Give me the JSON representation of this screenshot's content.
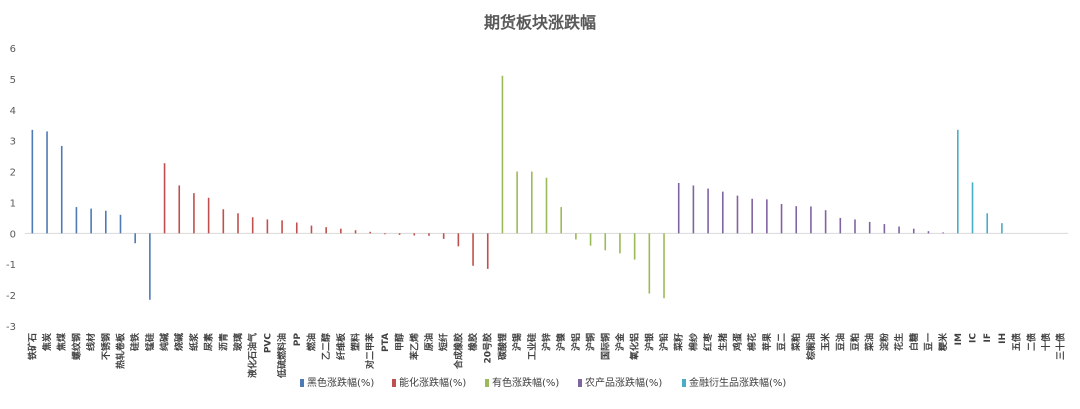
{
  "chart_data": {
    "type": "bar",
    "title": "期货板块涨跌幅",
    "xlabel": "",
    "ylabel": "",
    "ylim": [
      -3,
      6
    ],
    "yticks": [
      -3,
      -2,
      -1,
      0,
      1,
      2,
      3,
      4,
      5,
      6
    ],
    "grid": false,
    "legend_position": "bottom",
    "categories": [
      "铁矿石",
      "焦炭",
      "焦煤",
      "螺纹钢",
      "线材",
      "不锈钢",
      "热轧卷板",
      "硅铁",
      "锰硅",
      "纯碱",
      "烧碱",
      "纸浆",
      "尿素",
      "沥青",
      "玻璃",
      "液化石油气",
      "PVC",
      "低硫燃料油",
      "PP",
      "燃油",
      "乙二醇",
      "纤维板",
      "塑料",
      "对二甲苯",
      "PTA",
      "甲醇",
      "苯乙烯",
      "原油",
      "短纤",
      "合成橡胶",
      "橡胶",
      "20号胶",
      "碳酸锂",
      "沪锡",
      "工业硅",
      "沪锌",
      "沪镍",
      "沪铝",
      "沪铜",
      "国际铜",
      "沪金",
      "氧化铝",
      "沪银",
      "沪铅",
      "菜籽",
      "棉纱",
      "红枣",
      "生猪",
      "鸡蛋",
      "棉花",
      "苹果",
      "豆二",
      "菜粕",
      "棕榈油",
      "玉米",
      "豆油",
      "豆粕",
      "菜油",
      "淀粉",
      "花生",
      "白糖",
      "豆一",
      "粳米",
      "IM",
      "IC",
      "IF",
      "IH",
      "五债",
      "二债",
      "十债",
      "三十债"
    ],
    "values": [
      3.35,
      3.3,
      2.83,
      0.85,
      0.8,
      0.73,
      0.6,
      -0.32,
      -2.15,
      2.27,
      1.55,
      1.3,
      1.15,
      0.78,
      0.65,
      0.52,
      0.45,
      0.42,
      0.35,
      0.25,
      0.2,
      0.15,
      0.1,
      0.05,
      -0.03,
      -0.05,
      -0.07,
      -0.08,
      -0.18,
      -0.42,
      -1.05,
      -1.15,
      5.1,
      2.0,
      2.0,
      1.8,
      0.85,
      -0.2,
      -0.4,
      -0.55,
      -0.65,
      -0.85,
      -1.95,
      -2.1,
      1.63,
      1.55,
      1.45,
      1.35,
      1.22,
      1.12,
      1.1,
      0.95,
      0.88,
      0.87,
      0.75,
      0.5,
      0.45,
      0.37,
      0.3,
      0.22,
      0.15,
      0.07,
      0.03,
      3.35,
      1.65,
      0.65,
      0.33,
      0,
      0,
      0,
      0
    ],
    "groups": [
      0,
      0,
      0,
      0,
      0,
      0,
      0,
      0,
      0,
      1,
      1,
      1,
      1,
      1,
      1,
      1,
      1,
      1,
      1,
      1,
      1,
      1,
      1,
      1,
      1,
      1,
      1,
      1,
      1,
      1,
      1,
      1,
      2,
      2,
      2,
      2,
      2,
      2,
      2,
      2,
      2,
      2,
      2,
      2,
      3,
      3,
      3,
      3,
      3,
      3,
      3,
      3,
      3,
      3,
      3,
      3,
      3,
      3,
      3,
      3,
      3,
      3,
      3,
      4,
      4,
      4,
      4,
      4,
      4,
      4,
      4
    ],
    "series": [
      {
        "name": "黑色涨跌幅(%)",
        "color": "#4e7ab5"
      },
      {
        "name": "能化涨跌幅(%)",
        "color": "#c0504d"
      },
      {
        "name": "有色涨跌幅(%)",
        "color": "#9bbb59"
      },
      {
        "name": "农产品涨跌幅(%)",
        "color": "#8064a2"
      },
      {
        "name": "金融衍生品涨跌幅(%)",
        "color": "#4bacc6"
      }
    ]
  }
}
